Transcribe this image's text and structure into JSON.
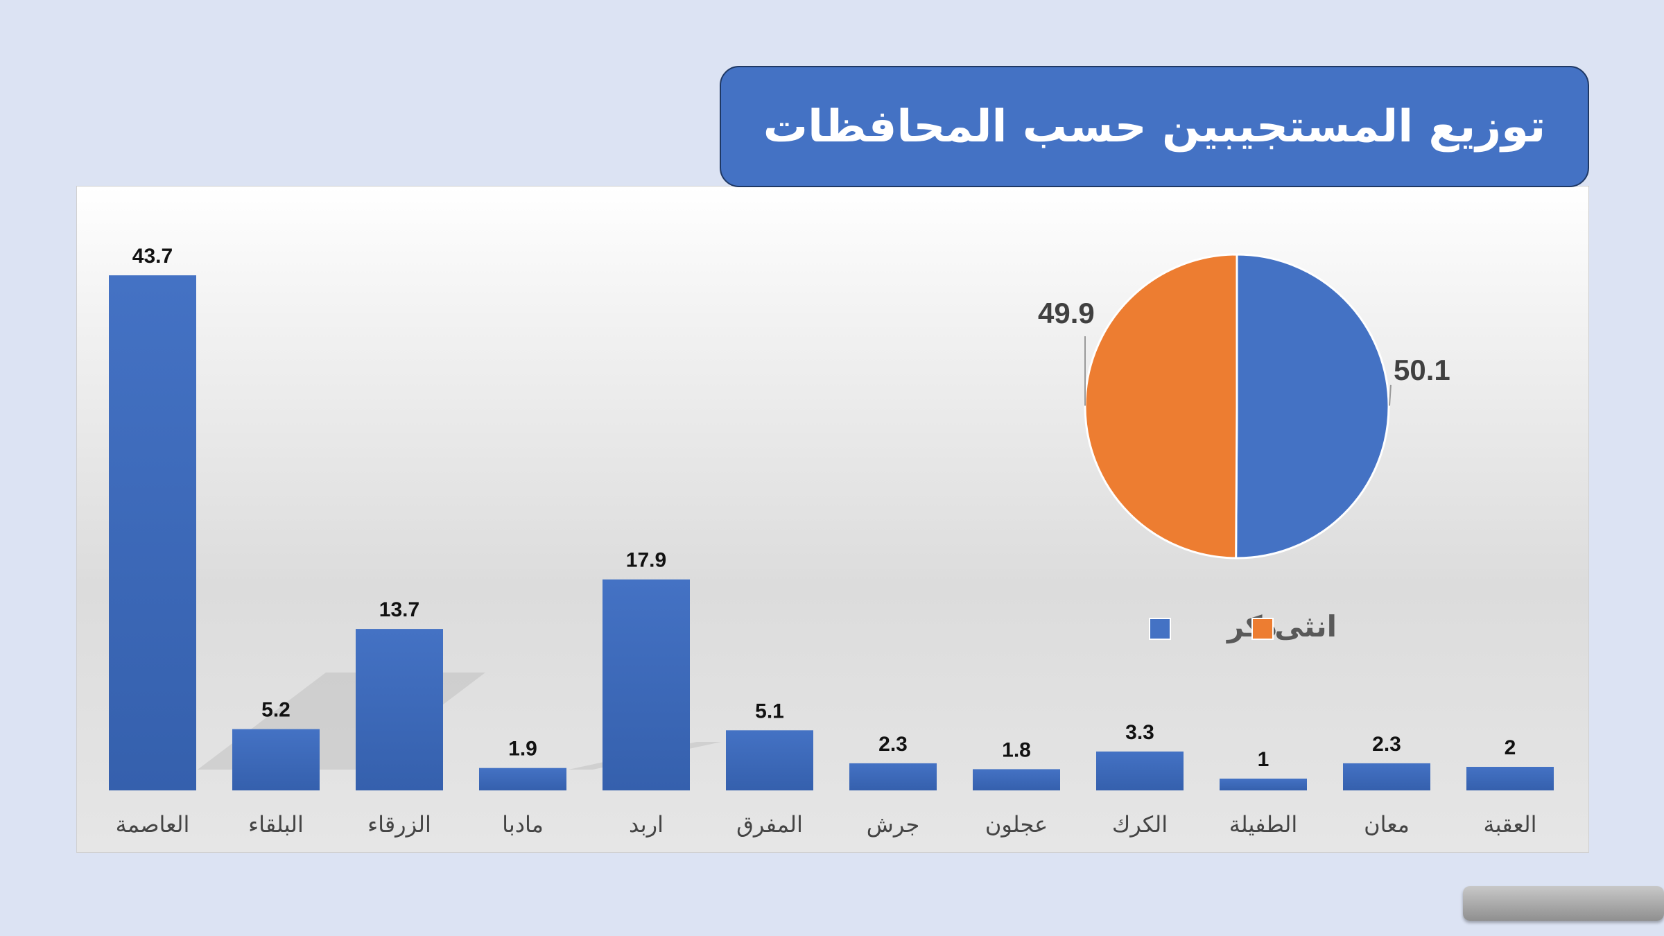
{
  "title": "توزيع المستجيبين حسب المحافظات",
  "chart_data": [
    {
      "type": "bar",
      "title": "توزيع المستجيبين حسب المحافظات",
      "categories": [
        "العاصمة",
        "البلقاء",
        "الزرقاء",
        "مادبا",
        "اربد",
        "المفرق",
        "جرش",
        "عجلون",
        "الكرك",
        "الطفيلة",
        "معان",
        "العقبة"
      ],
      "values": [
        43.7,
        5.2,
        13.7,
        1.9,
        17.9,
        5.1,
        2.3,
        1.8,
        3.3,
        1,
        2.3,
        2
      ],
      "value_labels": [
        "43.7",
        "5.2",
        "13.7",
        "1.9",
        "17.9",
        "5.1",
        "2.3",
        "1.8",
        "3.3",
        "1",
        "2.3",
        "2"
      ],
      "color": "#4472c4",
      "grid": false
    },
    {
      "type": "pie",
      "categories": [
        "ذكر",
        "انثى"
      ],
      "values": [
        50.1,
        49.9
      ],
      "value_labels": [
        "50.1",
        "49.9"
      ],
      "colors": [
        "#4472c4",
        "#ed7d31"
      ],
      "legend": "bottom"
    }
  ]
}
